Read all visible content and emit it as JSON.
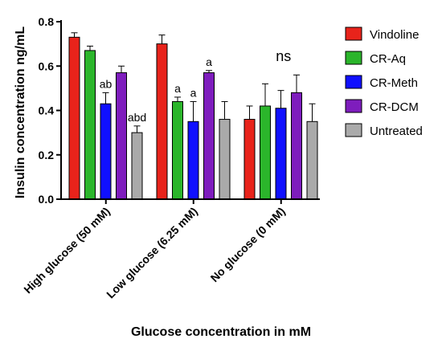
{
  "chart_data": {
    "type": "bar",
    "title": "",
    "xlabel": "Glucose concentration in mM",
    "ylabel": "Insulin concentration ng/mL",
    "ylim": [
      0,
      0.8
    ],
    "yticks": [
      "0.0",
      "0.2",
      "0.4",
      "0.6",
      "0.8"
    ],
    "categories": [
      "High glucose (50 mM)",
      "Low glucose (6.25 mM)",
      "No glucose (0 mM)"
    ],
    "legend_position": "right",
    "grid": false,
    "series": [
      {
        "name": "Vindoline",
        "color": "#e8231b",
        "values": [
          0.73,
          0.7,
          0.36
        ],
        "errors": [
          0.02,
          0.04,
          0.06
        ],
        "labels": [
          "",
          "",
          ""
        ]
      },
      {
        "name": "CR-Aq",
        "color": "#2bb52b",
        "values": [
          0.67,
          0.44,
          0.42
        ],
        "errors": [
          0.02,
          0.02,
          0.1
        ],
        "labels": [
          "",
          "a",
          ""
        ]
      },
      {
        "name": "CR-Meth",
        "color": "#1010ff",
        "values": [
          0.43,
          0.35,
          0.41
        ],
        "errors": [
          0.05,
          0.09,
          0.08
        ],
        "labels": [
          "ab",
          "a",
          ""
        ]
      },
      {
        "name": "CR-DCM",
        "color": "#7e1dbd",
        "values": [
          0.57,
          0.57,
          0.48
        ],
        "errors": [
          0.03,
          0.01,
          0.08
        ],
        "labels": [
          "",
          "a",
          ""
        ]
      },
      {
        "name": "Untreated",
        "color": "#aaaaaa",
        "values": [
          0.3,
          0.36,
          0.35
        ],
        "errors": [
          0.03,
          0.08,
          0.08
        ],
        "labels": [
          "abd",
          "",
          ""
        ]
      }
    ],
    "group_annotations": [
      "",
      "",
      "ns"
    ]
  }
}
